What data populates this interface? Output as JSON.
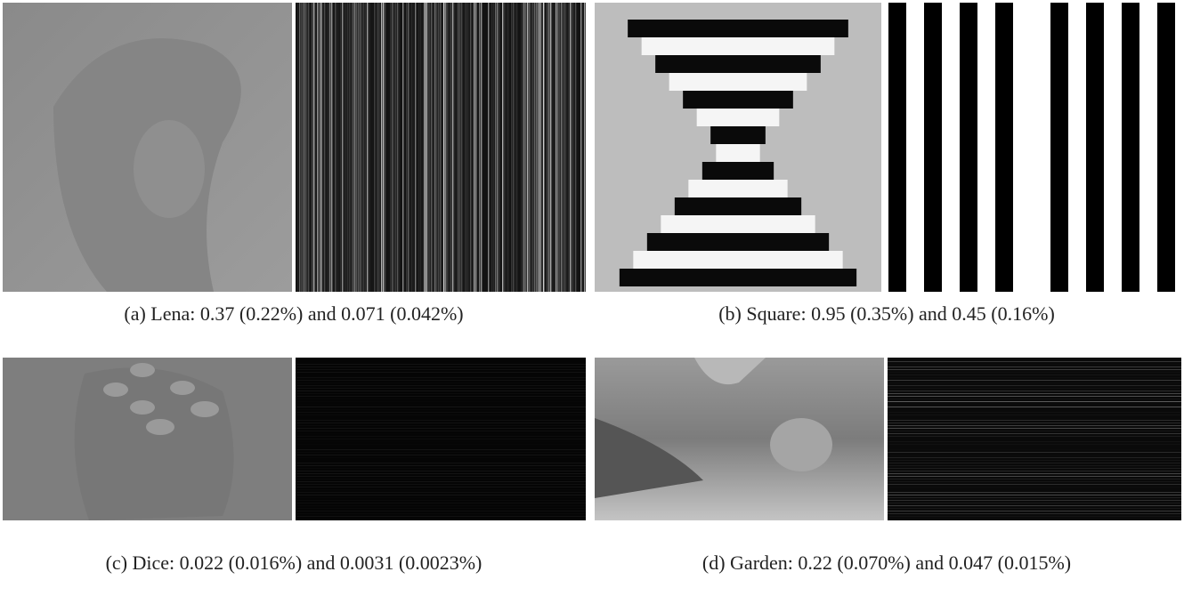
{
  "figures": [
    {
      "label": "(a)",
      "caption": "Lena: 0.37 (0.22%) and 0.071 (0.042%)"
    },
    {
      "label": "(b)",
      "caption": "Square: 0.95 (0.35%) and 0.45 (0.16%)"
    },
    {
      "label": "(c)",
      "caption": "Dice: 0.022 (0.016%) and 0.0031 (0.0023%)"
    },
    {
      "label": "(d)",
      "caption": "Garden: 0.22 (0.070%) and 0.047 (0.015%)"
    }
  ]
}
